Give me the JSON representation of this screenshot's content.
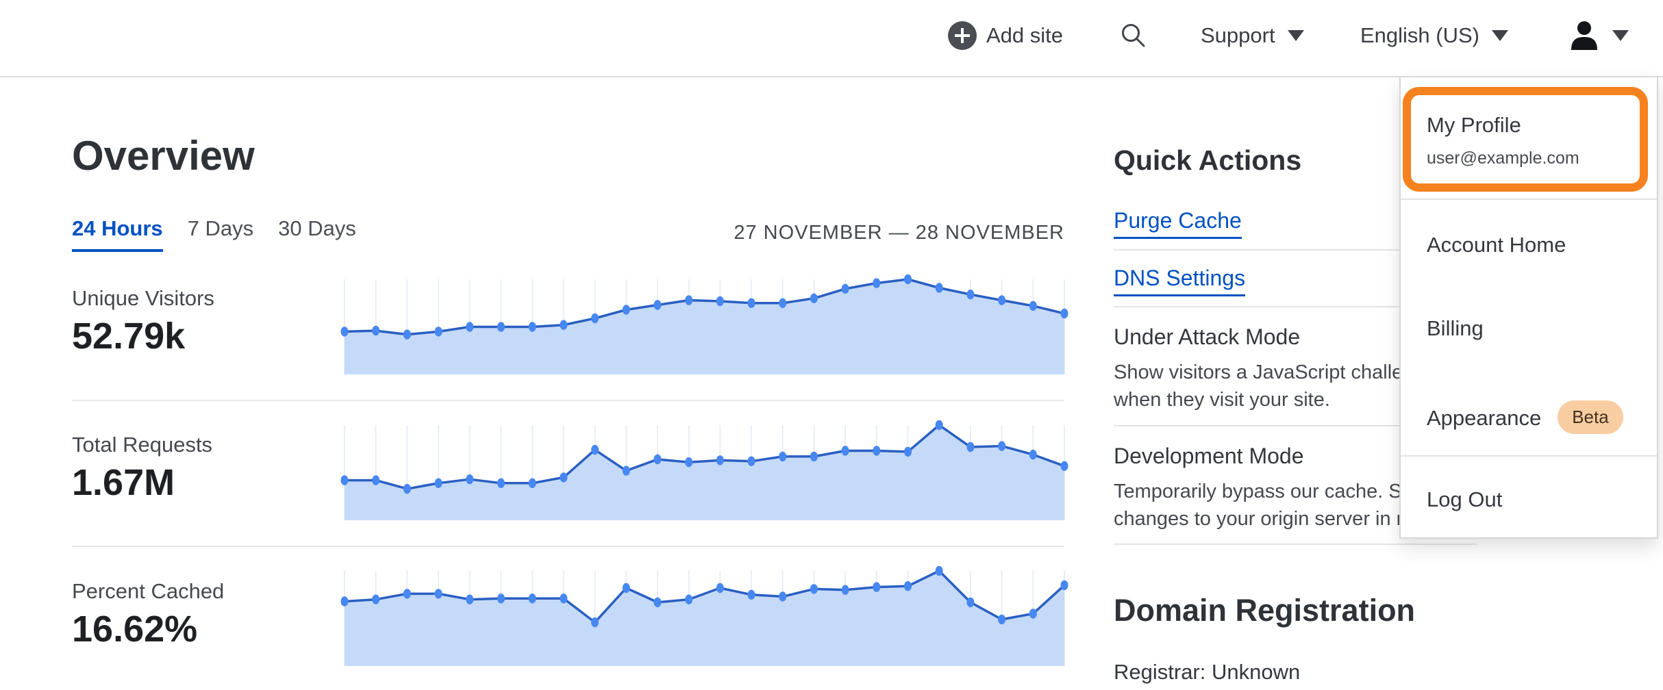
{
  "topbar": {
    "add_site_label": "Add site",
    "support_label": "Support",
    "language_label": "English (US)"
  },
  "user_menu": {
    "profile_label": "My Profile",
    "profile_email": "user@example.com",
    "account_home_label": "Account Home",
    "billing_label": "Billing",
    "appearance_label": "Appearance",
    "appearance_badge": "Beta",
    "log_out_label": "Log Out"
  },
  "overview": {
    "title": "Overview",
    "tabs": [
      {
        "label": "24 Hours",
        "active": true
      },
      {
        "label": "7 Days",
        "active": false
      },
      {
        "label": "30 Days",
        "active": false
      }
    ],
    "date_range": "27 NOVEMBER — 28 NOVEMBER",
    "metrics": [
      {
        "label": "Unique Visitors",
        "value": "52.79k"
      },
      {
        "label": "Total Requests",
        "value": "1.67M"
      },
      {
        "label": "Percent Cached",
        "value": "16.62%"
      }
    ]
  },
  "quick_actions": {
    "title": "Quick Actions",
    "purge_cache_label": "Purge Cache",
    "dns_settings_label": "DNS Settings",
    "under_attack_title": "Under Attack Mode",
    "under_attack_desc_line1": "Show visitors a JavaScript challenge",
    "under_attack_desc_line2": "when they visit your site.",
    "dev_mode_title": "Development Mode",
    "dev_mode_desc_line1": "Temporarily bypass our cache. See",
    "dev_mode_desc_line2": "changes to your origin server in realtime."
  },
  "domain_registration": {
    "title": "Domain Registration",
    "registrar": "Registrar: Unknown"
  },
  "accent_colors": {
    "link_blue": "#0051c3",
    "annotation_orange": "#f6821f",
    "beta_pill_bg": "#f8cda1"
  },
  "chart_data": [
    {
      "type": "area",
      "title": "Unique Visitors",
      "headline_value": "52.79k",
      "x_description": "24 hourly points, 27 November — 28 November (no axis labels shown)",
      "ylim": [
        0,
        1
      ],
      "values_relative": [
        0.45,
        0.46,
        0.42,
        0.45,
        0.5,
        0.5,
        0.5,
        0.52,
        0.59,
        0.68,
        0.73,
        0.78,
        0.77,
        0.75,
        0.75,
        0.8,
        0.9,
        0.96,
        1.0,
        0.91,
        0.84,
        0.78,
        0.72,
        0.64
      ],
      "grid": "vertical-only",
      "colors": {
        "line": "#2a5fc2",
        "fill": "#c5daf8",
        "marker": "#4787f1",
        "grid": "#e9eef5"
      }
    },
    {
      "type": "area",
      "title": "Total Requests",
      "headline_value": "1.67M",
      "x_description": "24 hourly points, 27 November — 28 November (no axis labels shown)",
      "ylim": [
        0,
        1
      ],
      "values_relative": [
        0.42,
        0.42,
        0.33,
        0.39,
        0.43,
        0.39,
        0.39,
        0.45,
        0.74,
        0.52,
        0.64,
        0.61,
        0.63,
        0.62,
        0.67,
        0.67,
        0.73,
        0.73,
        0.72,
        1.0,
        0.77,
        0.78,
        0.69,
        0.57
      ],
      "grid": "vertical-only",
      "colors": {
        "line": "#2a5fc2",
        "fill": "#c5daf8",
        "marker": "#4787f1",
        "grid": "#e9eef5"
      }
    },
    {
      "type": "area",
      "title": "Percent Cached",
      "headline_value": "16.62%",
      "x_description": "24 hourly points, 27 November — 28 November (no axis labels shown)",
      "ylim": [
        0,
        1
      ],
      "values_relative": [
        0.68,
        0.7,
        0.76,
        0.76,
        0.7,
        0.71,
        0.71,
        0.71,
        0.46,
        0.82,
        0.67,
        0.7,
        0.82,
        0.75,
        0.73,
        0.81,
        0.8,
        0.83,
        0.84,
        1.0,
        0.67,
        0.49,
        0.55,
        0.85
      ],
      "grid": "vertical-only",
      "colors": {
        "line": "#2a5fc2",
        "fill": "#c5daf8",
        "marker": "#4787f1",
        "grid": "#e9eef5"
      }
    }
  ]
}
